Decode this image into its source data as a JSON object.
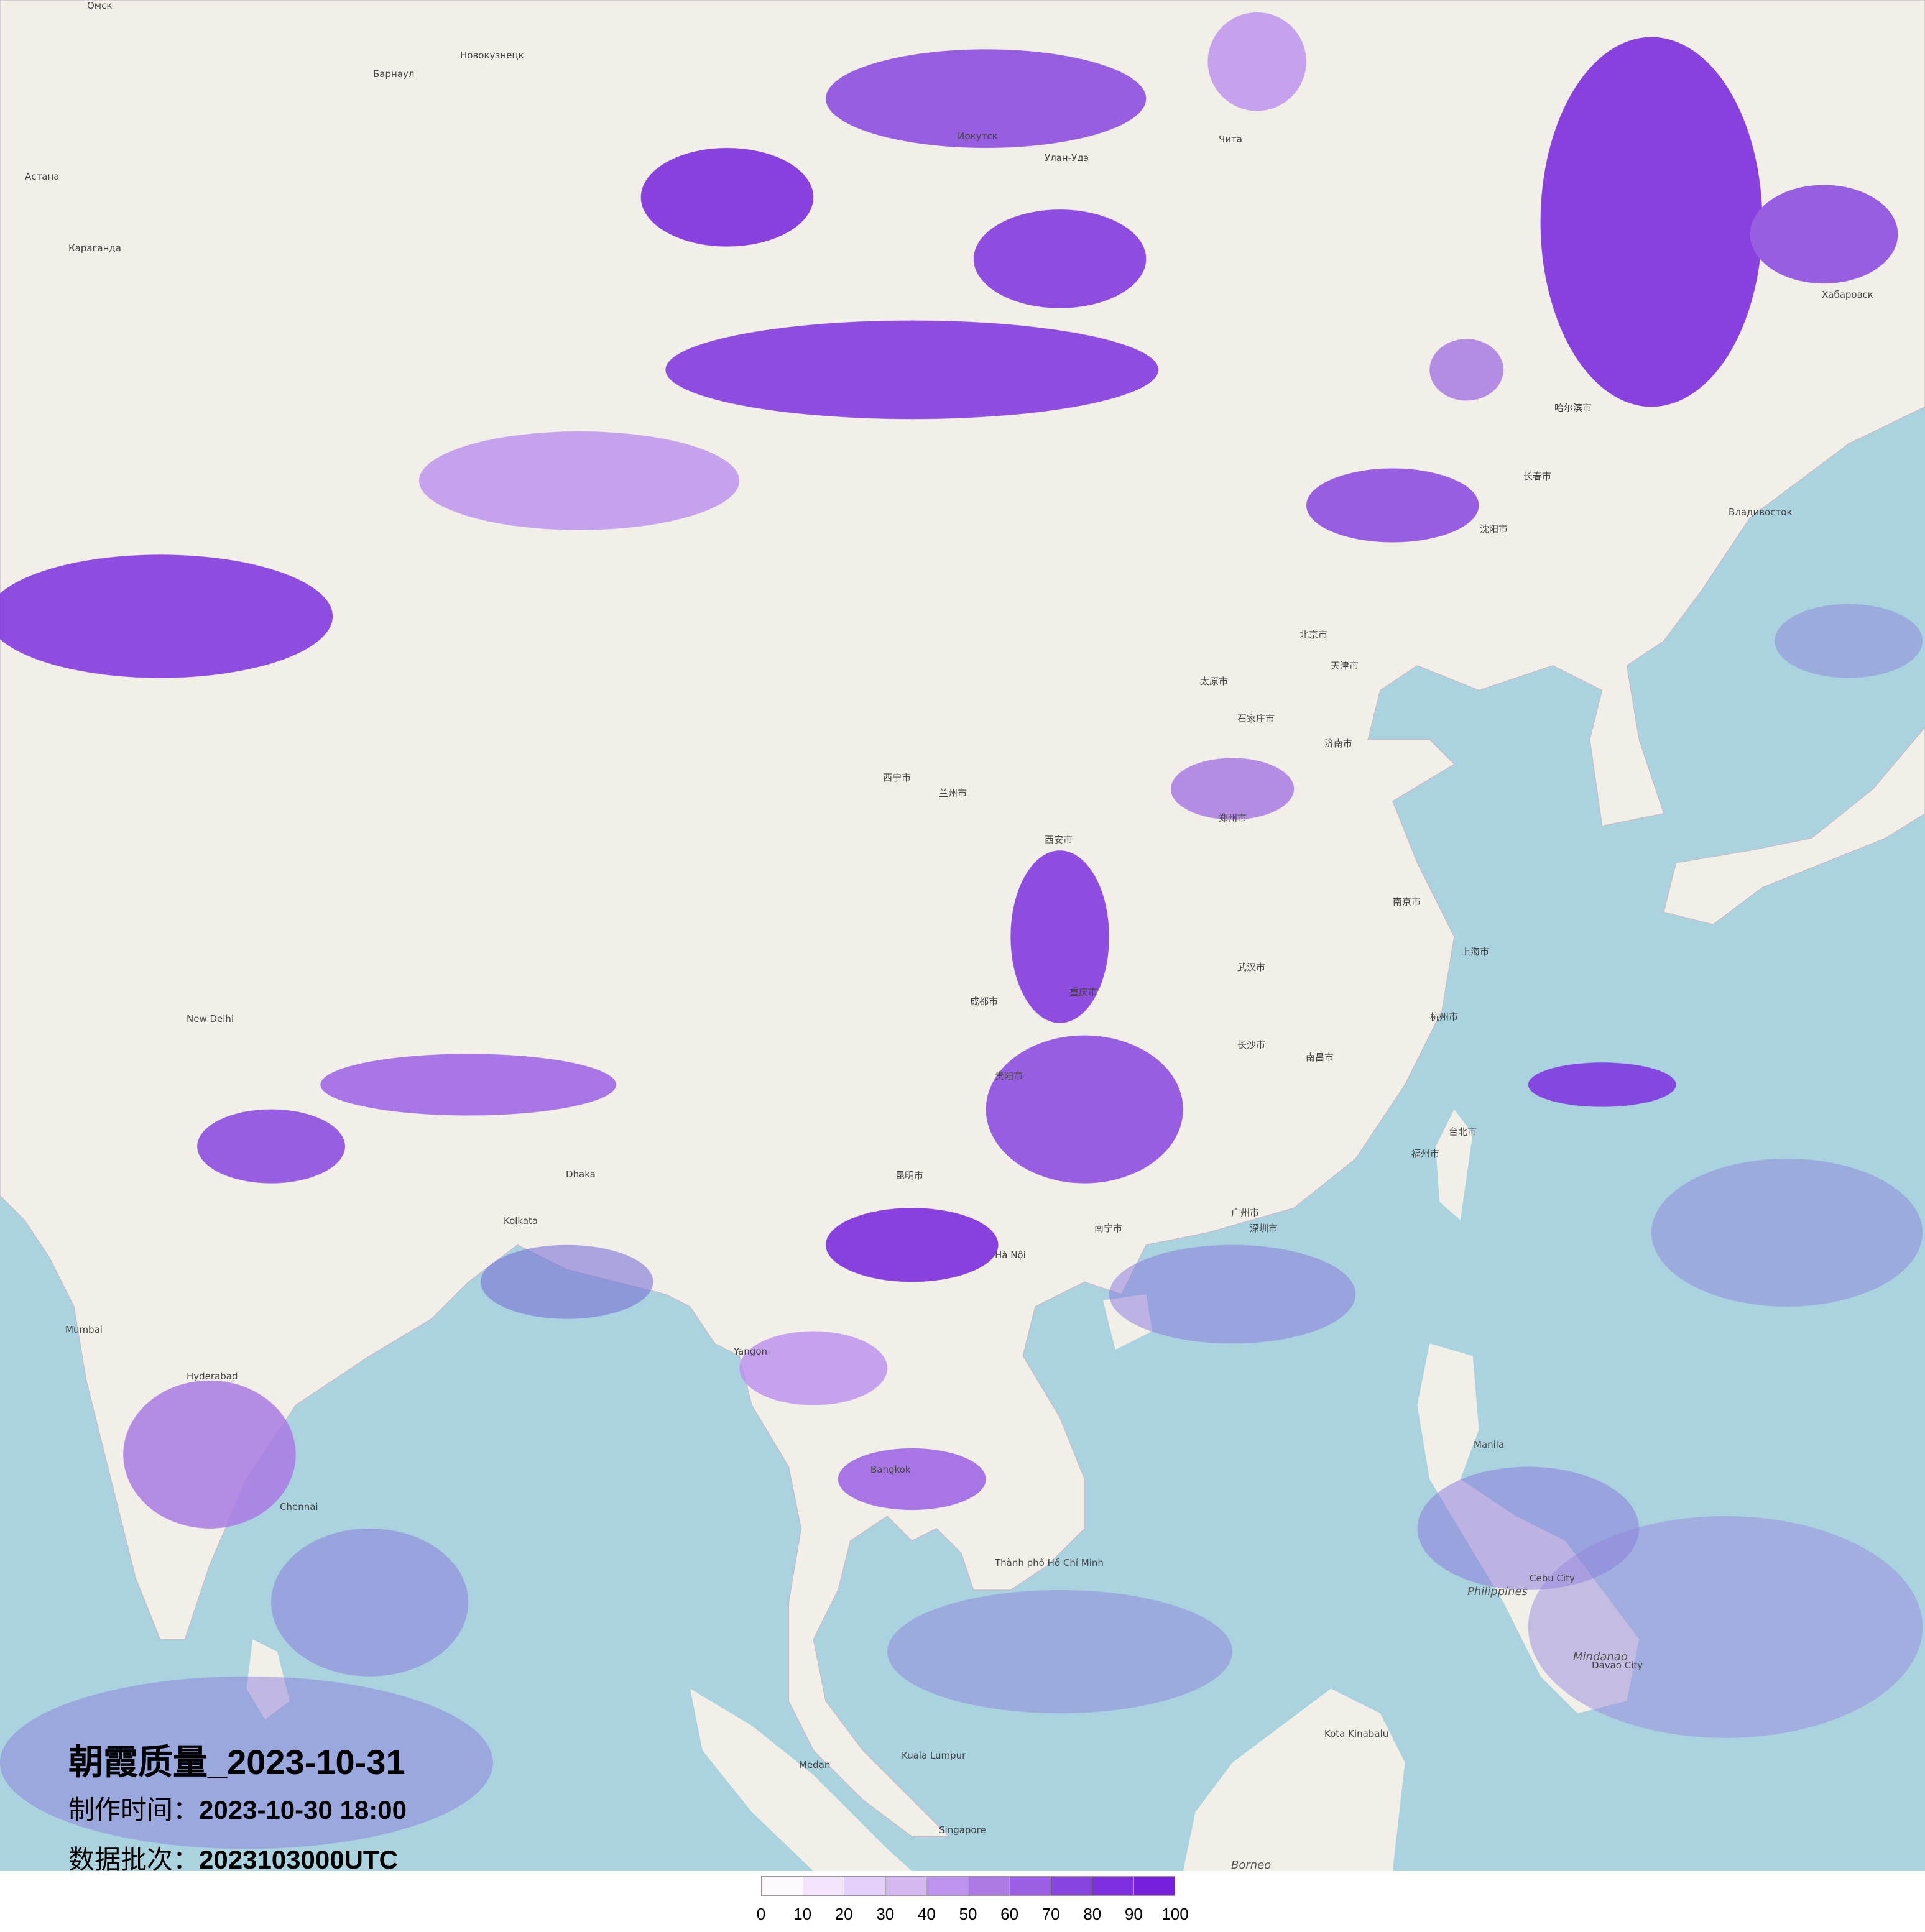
{
  "title": "朝霞质量_2023-10-31",
  "production_time": {
    "label": "制作时间：",
    "value": "2023-10-30 18:00"
  },
  "data_batch": {
    "label": "数据批次：",
    "value": "2023103000UTC"
  },
  "legend": {
    "ticks": [
      "0",
      "10",
      "20",
      "30",
      "40",
      "50",
      "60",
      "70",
      "80",
      "90",
      "100"
    ],
    "colors": [
      "#fdf8fd",
      "#f1e4fb",
      "#e4d0fa",
      "#d4b8f1",
      "#be93ee",
      "#ab7ae3",
      "#9a5fe4",
      "#8844e0",
      "#7e2fdf",
      "#7520dd"
    ]
  },
  "map": {
    "land_color": "#f2efe9",
    "sea_color": "#aad3df",
    "place_labels": [
      "Омск",
      "Барнаул",
      "Новокузнецк",
      "Астана",
      "Караганда",
      "Иркутск",
      "Улан-Удэ",
      "Чита",
      "Хабаровск",
      "Владивосток",
      "哈尔滨市",
      "长春市",
      "沈阳市",
      "北京市",
      "天津市",
      "石家庄市",
      "太原市",
      "济南市",
      "郑州市",
      "西安市",
      "兰州市",
      "西宁市",
      "成都市",
      "重庆市",
      "武汉市",
      "南京市",
      "上海市",
      "杭州市",
      "长沙市",
      "南昌市",
      "福州市",
      "广州市",
      "深圳市",
      "南宁市",
      "昆明市",
      "贵阳市",
      "台北市",
      "New Delhi",
      "Kolkata",
      "Mumbai",
      "Hyderabad",
      "Chennai",
      "Dhaka",
      "Yangon",
      "Bangkok",
      "Hà Nội",
      "Thành phố Hồ Chí Minh",
      "Kuala Lumpur",
      "Singapore",
      "Manila",
      "Philippines",
      "Mindanao",
      "Borneo",
      "Cebu City",
      "Davao City",
      "Kota Kinabalu",
      "Medan"
    ]
  }
}
